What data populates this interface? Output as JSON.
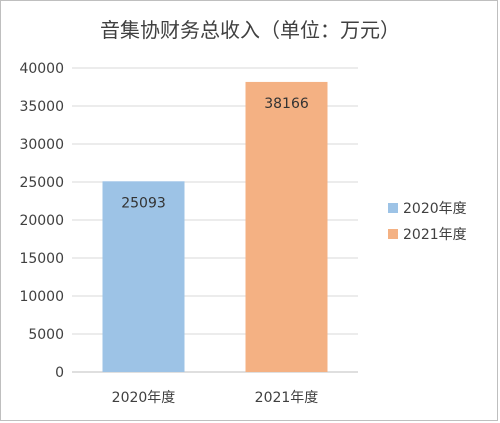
{
  "chart_data": {
    "type": "bar",
    "title": "音集协财务总收入（单位：万元）",
    "categories": [
      "2020年度",
      "2021年度"
    ],
    "values": [
      25093,
      38166
    ],
    "colors": [
      "#9dc3e6",
      "#f4b183"
    ],
    "ylim": [
      0,
      40000
    ],
    "yticks": [
      0,
      5000,
      10000,
      15000,
      20000,
      25000,
      30000,
      35000,
      40000
    ],
    "grid": true,
    "legend": {
      "position": "right",
      "entries": [
        "2020年度",
        "2021年度"
      ]
    },
    "data_labels": [
      "25093",
      "38166"
    ]
  }
}
